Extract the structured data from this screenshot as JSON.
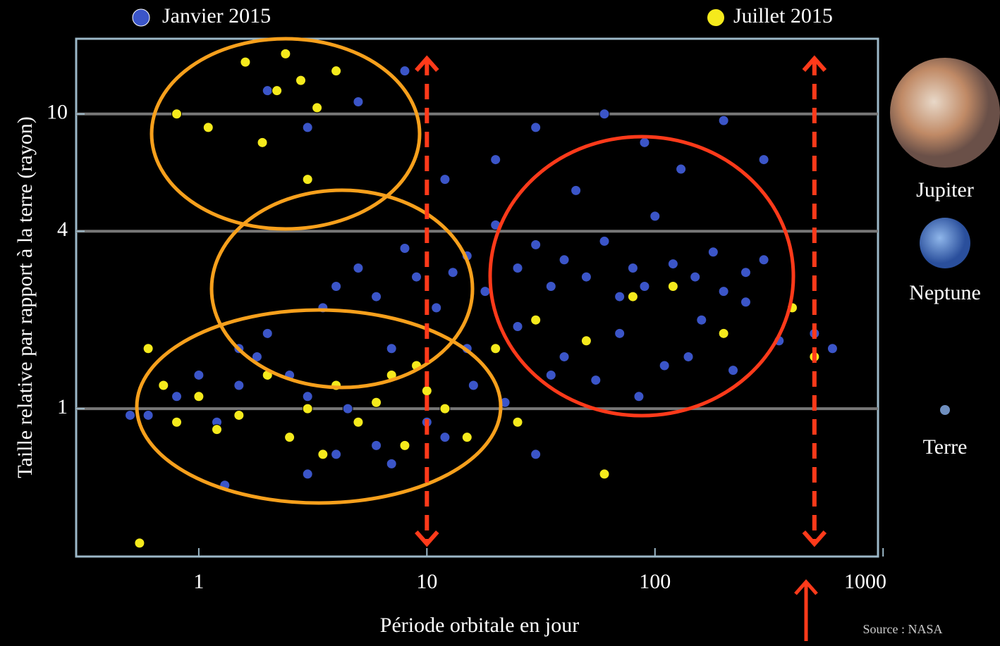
{
  "chart_data": {
    "type": "scatter",
    "x_label": "Période orbitale en jour",
    "y_label": "Taille relative par rapport à la terre (rayon)",
    "source": "Source : NASA",
    "annotations": [
      "Jupiter",
      "Neptune",
      "Terre"
    ],
    "xscale": "log",
    "yscale": "log",
    "xlim": [
      0.29,
      950
    ],
    "ylim": [
      0.315,
      18
    ],
    "xticks": [
      1,
      10,
      100,
      1000
    ],
    "yticks": [
      1,
      4,
      10
    ],
    "grid": true,
    "reference_lines": [
      10,
      500
    ],
    "series": [
      {
        "name": "Janvier 2015",
        "color": "#3b55c8",
        "x": [
          0.6,
          0.8,
          1,
          1.2,
          1.5,
          1.8,
          2,
          2.5,
          3,
          3.5,
          4,
          4.5,
          5,
          6,
          7,
          8,
          9,
          11,
          13,
          15,
          18,
          20,
          25,
          30,
          35,
          40,
          50,
          60,
          70,
          80,
          90,
          100,
          120,
          150,
          180,
          200,
          250,
          300,
          400,
          500,
          2,
          3,
          5,
          8,
          12,
          20,
          30,
          45,
          60,
          90,
          130,
          200,
          300,
          15,
          25,
          40,
          70,
          110,
          160,
          250,
          1.5,
          2.5,
          4,
          6,
          10,
          16,
          22,
          35,
          55,
          85,
          140,
          220,
          350,
          600,
          1.3,
          3,
          7,
          12,
          30,
          0.5
        ],
        "y": [
          0.95,
          1.1,
          1.3,
          0.9,
          1.2,
          1.5,
          1.8,
          1.3,
          1.1,
          2.2,
          2.6,
          1.0,
          3.0,
          2.4,
          1.6,
          3.5,
          2.8,
          2.2,
          2.9,
          3.3,
          2.5,
          4.2,
          3.0,
          3.6,
          2.6,
          3.2,
          2.8,
          3.7,
          2.4,
          3.0,
          2.6,
          4.5,
          3.1,
          2.8,
          3.4,
          2.5,
          2.9,
          3.2,
          2.2,
          1.8,
          12,
          9,
          11,
          14,
          6,
          7,
          9,
          5.5,
          10,
          8,
          6.5,
          9.5,
          7,
          1.6,
          1.9,
          1.5,
          1.8,
          1.4,
          2.0,
          2.3,
          1.6,
          0.8,
          0.7,
          0.75,
          0.9,
          1.2,
          1.05,
          1.3,
          1.25,
          1.1,
          1.5,
          1.35,
          1.7,
          1.6,
          0.55,
          0.6,
          0.65,
          0.8,
          0.7,
          0.95
        ]
      },
      {
        "name": "Juillet 2015",
        "color": "#f5ea1c",
        "x": [
          0.6,
          0.7,
          0.8,
          1,
          1.2,
          1.5,
          2,
          2.5,
          3,
          3.5,
          4,
          5,
          6,
          7,
          8,
          9,
          10,
          12,
          15,
          20,
          0.8,
          1.1,
          1.6,
          2.2,
          2.8,
          3.3,
          4,
          1.9,
          3,
          2.4,
          30,
          50,
          80,
          120,
          200,
          400,
          500,
          60,
          25,
          0.55
        ],
        "y": [
          1.6,
          1.2,
          0.9,
          1.1,
          0.85,
          0.95,
          1.3,
          0.8,
          1.0,
          0.7,
          1.2,
          0.9,
          1.05,
          1.3,
          0.75,
          1.4,
          1.15,
          1.0,
          0.8,
          1.6,
          10,
          9,
          15,
          12,
          13,
          10.5,
          14,
          8,
          6,
          16,
          2.0,
          1.7,
          2.4,
          2.6,
          1.8,
          2.2,
          1.5,
          0.6,
          0.9,
          0.35
        ]
      }
    ]
  }
}
